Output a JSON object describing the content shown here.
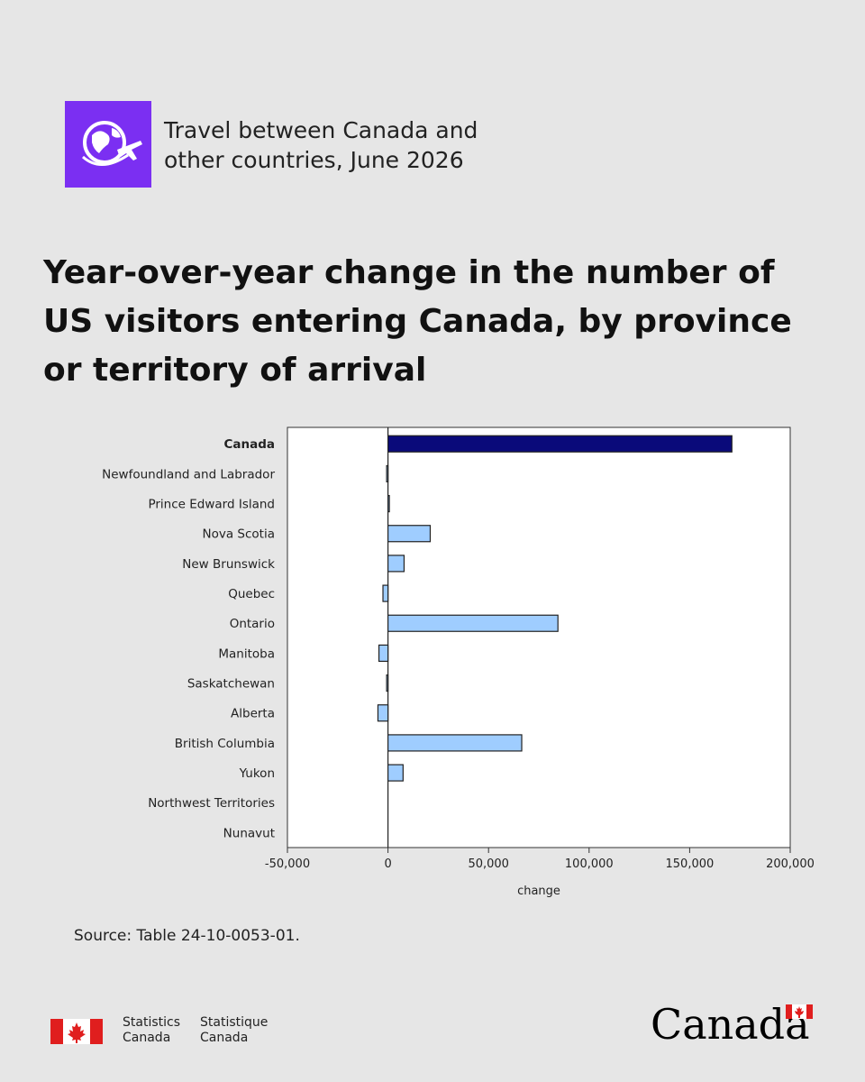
{
  "header": {
    "release_title": "Travel between Canada and other countries, June 2026",
    "icon": "globe-airplane-icon",
    "icon_color": "#7b2ff2"
  },
  "main_title": "Year-over-year change in the number of US visitors entering Canada, by province or territory of arrival",
  "chart_data": {
    "type": "bar",
    "orientation": "horizontal",
    "categories": [
      "Canada",
      "Newfoundland and Labrador",
      "Prince Edward Island",
      "Nova Scotia",
      "New Brunswick",
      "Quebec",
      "Ontario",
      "Manitoba",
      "Saskatchewan",
      "Alberta",
      "British Columbia",
      "Yukon",
      "Northwest Territories",
      "Nunavut"
    ],
    "values": [
      171000,
      -500,
      100,
      21000,
      8000,
      -2500,
      84500,
      -4500,
      -500,
      -5000,
      66500,
      7500,
      0,
      0
    ],
    "bold_categories": [
      "Canada"
    ],
    "xlabel": "change",
    "ylabel": "",
    "xlim": [
      -50000,
      200000
    ],
    "xticks": [
      -50000,
      0,
      50000,
      100000,
      150000,
      200000
    ],
    "xtick_labels": [
      "-50,000",
      "0",
      "50,000",
      "100,000",
      "150,000",
      "200,000"
    ],
    "colors": {
      "total": "#0a0a7a",
      "province": "#9fcdff",
      "outline": "#222222"
    },
    "grid": false
  },
  "source_note": "Source: Table 24-10-0053-01.",
  "footer": {
    "agency_en_line1": "Statistics",
    "agency_en_line2": "Canada",
    "agency_fr_line1": "Statistique",
    "agency_fr_line2": "Canada",
    "wordmark": "Canada",
    "flag_red": "#e01e1e"
  }
}
